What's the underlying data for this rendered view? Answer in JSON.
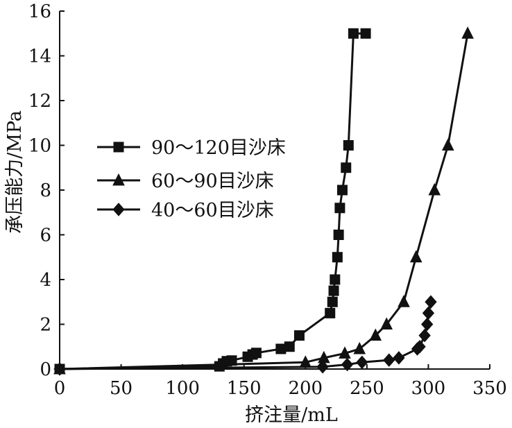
{
  "chart_data": {
    "type": "line",
    "xlabel": "挤注量/mL",
    "ylabel": "承压能力/MPa",
    "xlim": [
      0,
      350
    ],
    "ylim": [
      0,
      16
    ],
    "xticks": [
      0,
      50,
      100,
      150,
      200,
      250,
      300,
      350
    ],
    "yticks": [
      0,
      2,
      4,
      6,
      8,
      10,
      12,
      14,
      16
    ],
    "xtick_labels": [
      "0",
      "50",
      "100",
      "150",
      "200",
      "250",
      "300",
      "350"
    ],
    "ytick_labels": [
      "0",
      "2",
      "4",
      "6",
      "8",
      "10",
      "12",
      "14",
      "16"
    ],
    "grid": false,
    "legend_position": "middle-left",
    "series": [
      {
        "name": "90～120目沙床",
        "marker": "square",
        "x": [
          0,
          130,
          133,
          136,
          140,
          153,
          157,
          160,
          180,
          187,
          195,
          220,
          222,
          223,
          224,
          226,
          227,
          228,
          230,
          233,
          235,
          239,
          249
        ],
        "y": [
          0,
          0.12,
          0.25,
          0.35,
          0.38,
          0.55,
          0.65,
          0.72,
          0.9,
          1.0,
          1.5,
          2.5,
          3.0,
          3.5,
          4.0,
          5.0,
          6.0,
          7.2,
          8.0,
          9.0,
          10.0,
          15.0,
          15.0
        ]
      },
      {
        "name": "60～90目沙床",
        "marker": "triangle",
        "x": [
          0,
          200,
          215,
          232,
          244,
          257,
          266,
          280,
          290,
          305,
          316,
          332
        ],
        "y": [
          0,
          0.3,
          0.5,
          0.7,
          0.9,
          1.5,
          2.0,
          3.0,
          5.0,
          8.0,
          10.0,
          15.0
        ]
      },
      {
        "name": "40～60目沙床",
        "marker": "diamond",
        "x": [
          0,
          214,
          234,
          246,
          268,
          276,
          291,
          293,
          297,
          299,
          300,
          302
        ],
        "y": [
          0,
          0.1,
          0.2,
          0.3,
          0.4,
          0.5,
          0.9,
          1.0,
          1.5,
          2.0,
          2.5,
          3.0
        ]
      }
    ]
  }
}
